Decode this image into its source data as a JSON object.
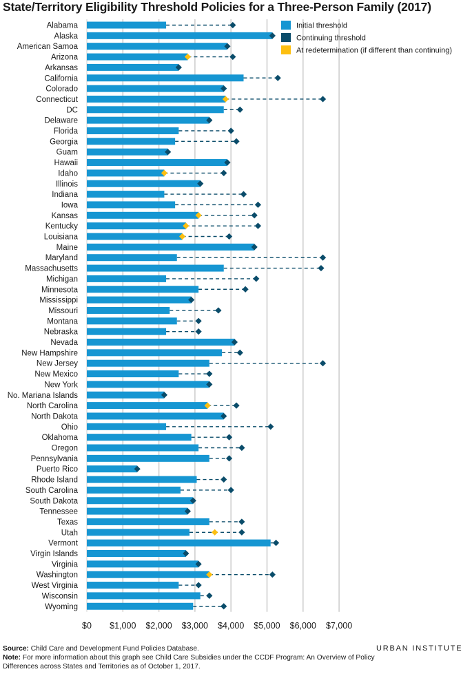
{
  "chart_data": {
    "type": "bar",
    "title": "State/Territory Eligibility Threshold Policies for a Three-Person Family (2017)",
    "categories": [
      "Alabama",
      "Alaska",
      "American Samoa",
      "Arizona",
      "Arkansas",
      "California",
      "Colorado",
      "Connecticut",
      "DC",
      "Delaware",
      "Florida",
      "Georgia",
      "Guam",
      "Hawaii",
      "Idaho",
      "Illinois",
      "Indiana",
      "Iowa",
      "Kansas",
      "Kentucky",
      "Louisiana",
      "Maine",
      "Maryland",
      "Massachusetts",
      "Michigan",
      "Minnesota",
      "Mississippi",
      "Missouri",
      "Montana",
      "Nebraska",
      "Nevada",
      "New Hampshire",
      "New Jersey",
      "New Mexico",
      "New York",
      "No. Mariana Islands",
      "North Carolina",
      "North Dakota",
      "Ohio",
      "Oklahoma",
      "Oregon",
      "Pennsylvania",
      "Puerto Rico",
      "Rhode Island",
      "South Carolina",
      "South Dakota",
      "Tennessee",
      "Texas",
      "Utah",
      "Vermont",
      "Virgin Islands",
      "Virginia",
      "Washington",
      "West Virginia",
      "Wisconsin",
      "Wyoming"
    ],
    "series": [
      {
        "name": "Initial threshold",
        "color": "#1696d2",
        "values": [
          2200,
          5150,
          3900,
          2800,
          2550,
          4350,
          3800,
          3850,
          3800,
          3400,
          2550,
          2450,
          2250,
          3900,
          2150,
          3150,
          2150,
          2450,
          3100,
          2750,
          2650,
          4650,
          2500,
          3800,
          2200,
          3100,
          2900,
          2300,
          2500,
          2200,
          4100,
          3750,
          3400,
          2550,
          3400,
          2150,
          3350,
          3800,
          2200,
          2900,
          3100,
          3400,
          1400,
          3050,
          2600,
          2950,
          2800,
          3400,
          2850,
          5100,
          2750,
          3100,
          3400,
          2550,
          3150,
          2950
        ]
      },
      {
        "name": "Continuing threshold",
        "color": "#0a4c6a",
        "values": [
          4050,
          5150,
          3900,
          4050,
          2550,
          5300,
          3800,
          6550,
          4250,
          3400,
          4000,
          4150,
          2250,
          3900,
          3800,
          3150,
          4350,
          4750,
          4650,
          4750,
          3950,
          4650,
          6550,
          6500,
          4700,
          4400,
          2900,
          3650,
          3100,
          3100,
          4100,
          4250,
          6550,
          3400,
          3400,
          2150,
          4150,
          3800,
          5100,
          3950,
          4300,
          3950,
          1400,
          3800,
          4000,
          2950,
          2800,
          4300,
          4300,
          5250,
          2750,
          3100,
          5150,
          3100,
          3400,
          3800
        ]
      },
      {
        "name": "At redetermination (if different than continuing)",
        "color": "#fdbf11",
        "values": [
          null,
          null,
          null,
          2800,
          null,
          null,
          null,
          3850,
          null,
          null,
          null,
          null,
          null,
          null,
          2150,
          null,
          null,
          null,
          3100,
          2750,
          2650,
          null,
          null,
          null,
          null,
          null,
          null,
          null,
          null,
          null,
          null,
          null,
          null,
          null,
          null,
          null,
          3350,
          null,
          null,
          null,
          null,
          null,
          null,
          null,
          null,
          null,
          null,
          null,
          3550,
          null,
          null,
          null,
          3400,
          null,
          null,
          null
        ]
      }
    ],
    "xlim": [
      0,
      7000
    ],
    "x_ticks": [
      0,
      1000,
      2000,
      3000,
      4000,
      5000,
      6000,
      7000
    ],
    "x_tick_labels": [
      "$0",
      "$1,000",
      "$2,000",
      "$3,000",
      "$4,000",
      "$5,000",
      "$6,000",
      "$7,000"
    ],
    "grid": "vertical",
    "legend_position": "top-right",
    "dashed_line_color": "#0a4c6a"
  },
  "footer": {
    "source_label": "Source:",
    "source_text": " Child Care and Development Fund Policies Database.",
    "note_label": "Note:",
    "note_text": " For more information about this graph see Child Care Subsidies under the CCDF Program: An Overview of Policy Differences across States and Territories as of October 1, 2017."
  },
  "brand": "URBAN INSTITUTE"
}
